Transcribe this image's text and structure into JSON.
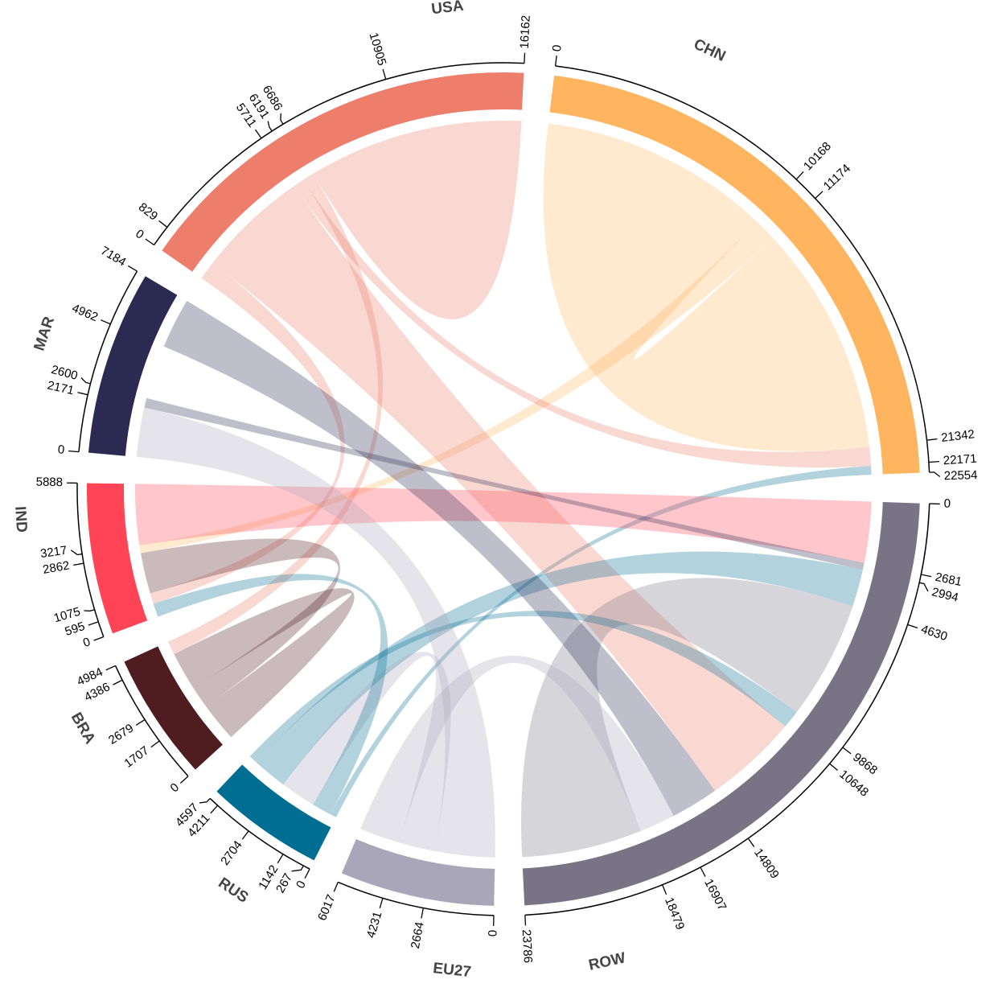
{
  "chart_data": {
    "type": "chord",
    "title": "",
    "sectors": [
      {
        "name": "CHN",
        "total": 22554,
        "color": "#ffb55f",
        "ticks": [
          0,
          10168,
          11174,
          21342,
          22171,
          22554
        ]
      },
      {
        "name": "ROW",
        "total": 23786,
        "color": "#787486",
        "ticks": [
          0,
          2681,
          2994,
          4630,
          9868,
          10648,
          14809,
          16907,
          18479,
          23786
        ]
      },
      {
        "name": "EU27",
        "total": 6017,
        "color": "#aaa6b9",
        "ticks": [
          0,
          2664,
          4231,
          6017
        ]
      },
      {
        "name": "RUS",
        "total": 4597,
        "color": "#006d92",
        "ticks": [
          0,
          267,
          1142,
          2704,
          4211,
          4597
        ]
      },
      {
        "name": "BRA",
        "total": 4984,
        "color": "#4f1c20",
        "ticks": [
          0,
          1707,
          2679,
          4386,
          4984
        ]
      },
      {
        "name": "IND",
        "total": 5888,
        "color": "#ff4455",
        "ticks": [
          0,
          595,
          1075,
          2862,
          3217,
          5888
        ]
      },
      {
        "name": "MAR",
        "total": 7184,
        "color": "#2b2a52",
        "ticks": [
          0,
          2171,
          2600,
          4962,
          7184
        ]
      },
      {
        "name": "USA",
        "total": 16162,
        "color": "#ec7e6b",
        "ticks": [
          0,
          829,
          5711,
          6191,
          6686,
          10905,
          16162
        ]
      }
    ],
    "chords": [
      {
        "from": "CHN",
        "a": [
          0,
          10168
        ],
        "to": "CHN",
        "b": [
          11174,
          21342
        ]
      },
      {
        "from": "CHN",
        "a": [
          10168,
          11174
        ],
        "to": "IND",
        "b": [
          2862,
          3217
        ]
      },
      {
        "from": "USA",
        "a": [
          5711,
          6191
        ],
        "to": "CHN",
        "b": [
          21342,
          22171
        ]
      },
      {
        "from": "RUS",
        "a": [
          0,
          267
        ],
        "to": "CHN",
        "b": [
          22171,
          22554
        ]
      },
      {
        "from": "USA",
        "a": [
          6686,
          10905
        ],
        "to": "USA",
        "b": [
          10905,
          16162
        ]
      },
      {
        "from": "USA",
        "a": [
          829,
          5711
        ],
        "to": "ROW",
        "b": [
          10648,
          14809
        ]
      },
      {
        "from": "USA",
        "a": [
          0,
          829
        ],
        "to": "IND",
        "b": [
          595,
          1075
        ]
      },
      {
        "from": "USA",
        "a": [
          6191,
          6686
        ],
        "to": "BRA",
        "b": [
          4386,
          4984
        ]
      },
      {
        "from": "IND",
        "a": [
          3217,
          5888
        ],
        "to": "ROW",
        "b": [
          0,
          2681
        ]
      },
      {
        "from": "MAR",
        "a": [
          2171,
          2600
        ],
        "to": "ROW",
        "b": [
          2681,
          2994
        ]
      },
      {
        "from": "RUS",
        "a": [
          2704,
          4211
        ],
        "to": "ROW",
        "b": [
          2994,
          4630
        ]
      },
      {
        "from": "ROW",
        "a": [
          4630,
          9868
        ],
        "to": "ROW",
        "b": [
          18479,
          23786
        ]
      },
      {
        "from": "MAR",
        "a": [
          4962,
          7184
        ],
        "to": "ROW",
        "b": [
          14809,
          16907
        ]
      },
      {
        "from": "RUS",
        "a": [
          4211,
          4597
        ],
        "to": "ROW",
        "b": [
          9868,
          10648
        ]
      },
      {
        "from": "EU27",
        "a": [
          0,
          2664
        ],
        "to": "MAR",
        "b": [
          0,
          2171
        ]
      },
      {
        "from": "EU27",
        "a": [
          2664,
          4231
        ],
        "to": "RUS",
        "b": [
          1142,
          2704
        ]
      },
      {
        "from": "EU27",
        "a": [
          4231,
          6017
        ],
        "to": "ROW",
        "b": [
          16907,
          18479
        ]
      },
      {
        "from": "BRA",
        "a": [
          0,
          1707
        ],
        "to": "BRA",
        "b": [
          2679,
          4386
        ]
      },
      {
        "from": "BRA",
        "a": [
          1707,
          2679
        ],
        "to": "IND",
        "b": [
          1075,
          2862
        ]
      },
      {
        "from": "RUS",
        "a": [
          267,
          1142
        ],
        "to": "IND",
        "b": [
          0,
          595
        ]
      }
    ]
  }
}
